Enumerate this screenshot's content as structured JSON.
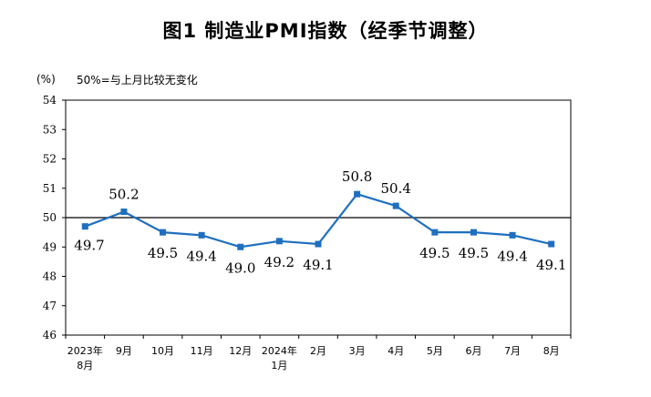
{
  "chart_data": {
    "type": "line",
    "title": "图1  制造业PMI指数（经季节调整）",
    "unit_label": "(%)",
    "note": "50%=与上月比较无变化",
    "ylim": [
      46,
      54
    ],
    "yticks": [
      46,
      47,
      48,
      49,
      50,
      51,
      52,
      53,
      54
    ],
    "reference_line": 50,
    "categories": [
      {
        "line1": "2023年",
        "line2": "8月"
      },
      {
        "line1": "9月",
        "line2": ""
      },
      {
        "line1": "10月",
        "line2": ""
      },
      {
        "line1": "11月",
        "line2": ""
      },
      {
        "line1": "12月",
        "line2": ""
      },
      {
        "line1": "2024年",
        "line2": "1月"
      },
      {
        "line1": "2月",
        "line2": ""
      },
      {
        "line1": "3月",
        "line2": ""
      },
      {
        "line1": "4月",
        "line2": ""
      },
      {
        "line1": "5月",
        "line2": ""
      },
      {
        "line1": "6月",
        "line2": ""
      },
      {
        "line1": "7月",
        "line2": ""
      },
      {
        "line1": "8月",
        "line2": ""
      }
    ],
    "series": [
      {
        "name": "制造业PMI",
        "values": [
          49.7,
          50.2,
          49.5,
          49.4,
          49.0,
          49.2,
          49.1,
          50.8,
          50.4,
          49.5,
          49.5,
          49.4,
          49.1
        ],
        "labels": [
          "49.7",
          "50.2",
          "49.5",
          "49.4",
          "49.0",
          "49.2",
          "49.1",
          "50.8",
          "50.4",
          "49.5",
          "49.5",
          "49.4",
          "49.1"
        ],
        "label_pos": [
          "right",
          "above",
          "below",
          "below",
          "below",
          "below",
          "below",
          "above",
          "above",
          "below",
          "below",
          "below",
          "below"
        ]
      }
    ],
    "colors": {
      "line": "#1f6fbf",
      "marker": "#1f6fbf",
      "axis": "#000000"
    }
  }
}
